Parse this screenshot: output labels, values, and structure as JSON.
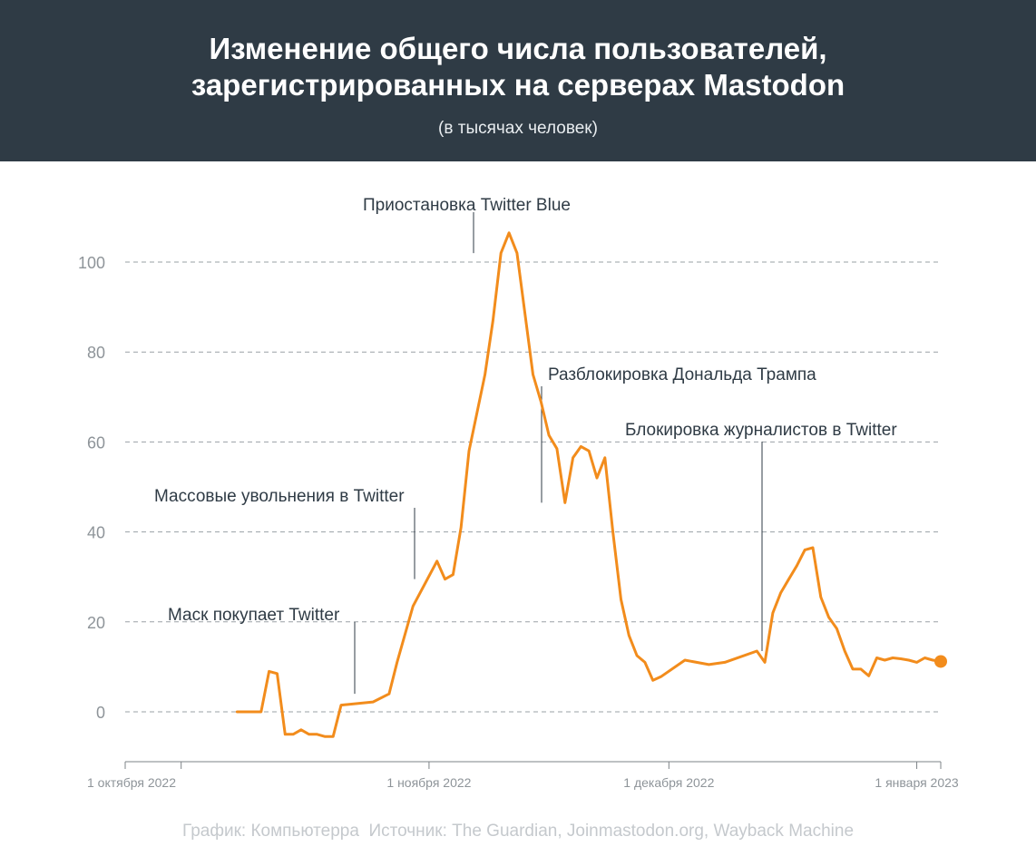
{
  "header": {
    "title_line1": "Изменение общего числа пользователей,",
    "title_line2": "зарегистрированных на серверах Mastodon",
    "subtitle": "(в тысячах человек)"
  },
  "footer": {
    "credit": "График: Компьютерра",
    "source": "Источник: The Guardian, Joinmastodon.org, Wayback Machine"
  },
  "colors": {
    "header_bg": "#2f3b45",
    "line": "#f28c1c",
    "grid": "#9aa0a6",
    "axis_text": "#8e9499",
    "annotation_text": "#2f3b45"
  },
  "chart_data": {
    "type": "line",
    "title": "Изменение общего числа пользователей, зарегистрированных на серверах Mastodon",
    "subtitle": "(в тысячах человек)",
    "xlabel": "",
    "ylabel": "",
    "ylim": [
      -10,
      110
    ],
    "yticks": [
      0,
      20,
      40,
      60,
      80,
      100
    ],
    "xlim": [
      "2022-09-24",
      "2023-01-04"
    ],
    "xticks": [
      {
        "date": "2022-10-01",
        "label": "1 октября 2022"
      },
      {
        "date": "2022-11-01",
        "label": "1 ноября 2022"
      },
      {
        "date": "2022-12-01",
        "label": "1 декабря 2022"
      },
      {
        "date": "2023-01-01",
        "label": "1 января 2023"
      }
    ],
    "grid": "dashed horizontal",
    "series": [
      {
        "x": [
          "2022-10-08",
          "2022-10-11",
          "2022-10-12",
          "2022-10-13",
          "2022-10-14",
          "2022-10-15",
          "2022-10-16",
          "2022-10-17",
          "2022-10-18",
          "2022-10-19",
          "2022-10-20",
          "2022-10-21",
          "2022-10-25",
          "2022-10-27",
          "2022-10-28",
          "2022-10-30",
          "2022-11-02",
          "2022-11-03",
          "2022-11-04",
          "2022-11-05",
          "2022-11-06",
          "2022-11-08",
          "2022-11-09",
          "2022-11-10",
          "2022-11-11",
          "2022-11-12",
          "2022-11-14",
          "2022-11-15",
          "2022-11-16",
          "2022-11-17",
          "2022-11-18",
          "2022-11-19",
          "2022-11-20",
          "2022-11-21",
          "2022-11-22",
          "2022-11-23",
          "2022-11-24",
          "2022-11-25",
          "2022-11-26",
          "2022-11-27",
          "2022-11-28",
          "2022-11-29",
          "2022-11-30",
          "2022-12-03",
          "2022-12-06",
          "2022-12-08",
          "2022-12-12",
          "2022-12-13",
          "2022-12-14",
          "2022-12-15",
          "2022-12-16",
          "2022-12-17",
          "2022-12-18",
          "2022-12-19",
          "2022-12-20",
          "2022-12-21",
          "2022-12-22",
          "2022-12-23",
          "2022-12-24",
          "2022-12-25",
          "2022-12-26",
          "2022-12-27",
          "2022-12-28",
          "2022-12-29",
          "2022-12-30",
          "2022-12-31",
          "2023-01-01",
          "2023-01-02",
          "2023-01-03",
          "2023-01-04"
        ],
        "y": [
          0,
          0,
          9,
          8.5,
          -5,
          -5,
          -4,
          -5,
          -5,
          -5.5,
          -5.5,
          1.5,
          2.2,
          4,
          11,
          23.5,
          33.5,
          29.5,
          30.5,
          41,
          58,
          75,
          87,
          102,
          106.5,
          102,
          75,
          69,
          61.5,
          58.5,
          46.5,
          56.5,
          59,
          58,
          52,
          56.5,
          40,
          25,
          17,
          12.5,
          11,
          7,
          7.8,
          11.5,
          10.5,
          11,
          13.5,
          11,
          22,
          26.5,
          29.5,
          32.5,
          36,
          36.5,
          25.5,
          21,
          18.5,
          13.5,
          9.5,
          9.5,
          8,
          12,
          11.5,
          12,
          11.8,
          11.5,
          11,
          12,
          11.5,
          11.2
        ]
      }
    ],
    "annotations": [
      {
        "text": "Маск покупает Twitter",
        "date": "2022-10-28",
        "y": 20
      },
      {
        "text": "Массовые увольнения в Twitter",
        "date": "2022-11-03",
        "y": 45
      },
      {
        "text": "Приостановка Twitter Blue",
        "date": "2022-11-10",
        "y": 111
      },
      {
        "text": "Разблокировка Дональда Трампа",
        "date": "2022-11-18",
        "y": 72
      },
      {
        "text": "Блокировка журналистов в Twitter",
        "date": "2022-12-13",
        "y": 60
      }
    ]
  }
}
